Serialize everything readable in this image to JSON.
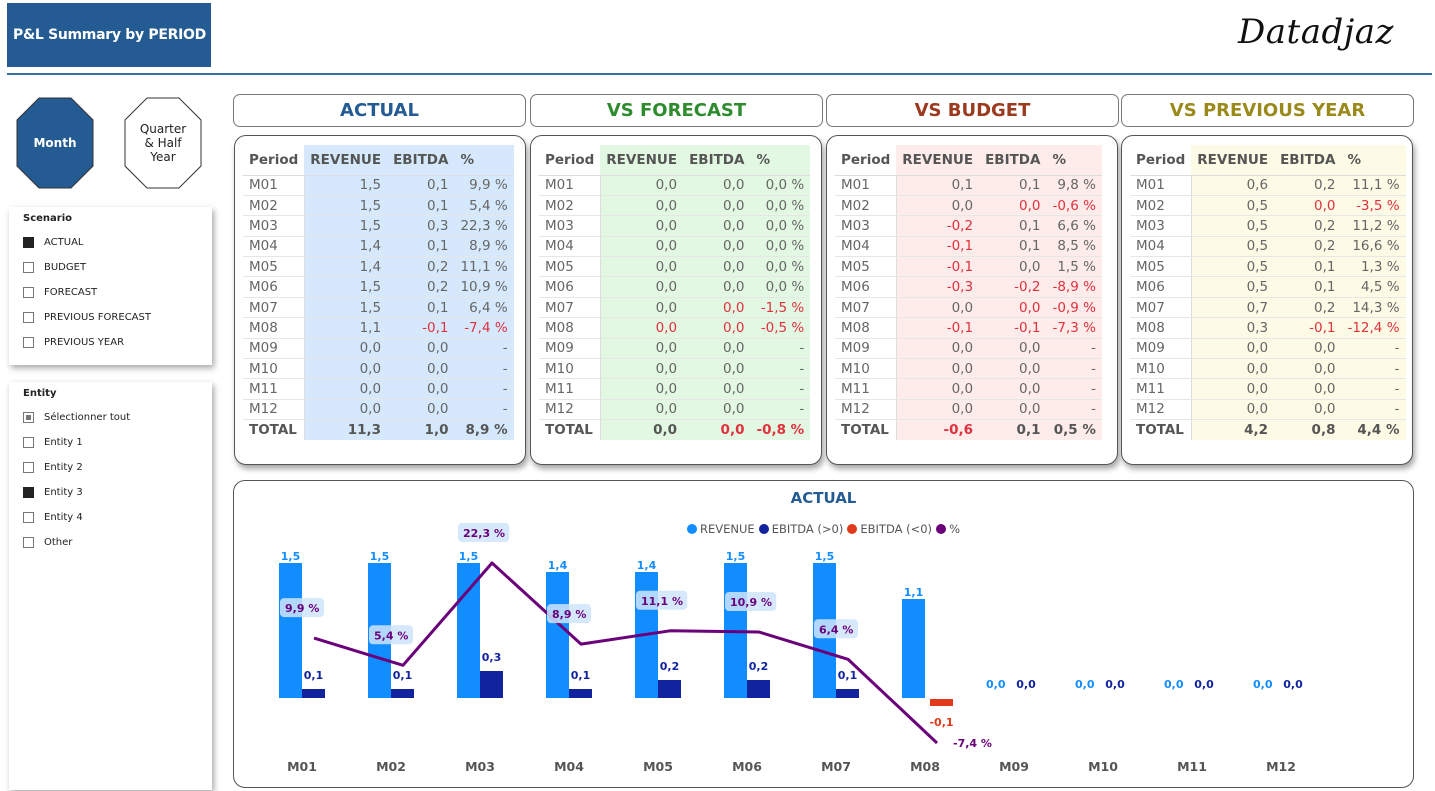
{
  "header": {
    "title": "P&L Summary by PERIOD",
    "logo": "Datadjaz"
  },
  "period_buttons": [
    {
      "label": "Month",
      "selected": true
    },
    {
      "label": "Quarter & Half Year",
      "lines": [
        "Quarter",
        "& Half",
        "Year"
      ],
      "selected": false
    }
  ],
  "scenario_slicer": {
    "title": "Scenario",
    "items": [
      {
        "label": "ACTUAL",
        "state": "on"
      },
      {
        "label": "BUDGET",
        "state": "off"
      },
      {
        "label": "FORECAST",
        "state": "off"
      },
      {
        "label": "PREVIOUS FORECAST",
        "state": "off"
      },
      {
        "label": "PREVIOUS YEAR",
        "state": "off"
      }
    ]
  },
  "entity_slicer": {
    "title": "Entity",
    "items": [
      {
        "label": "Sélectionner tout",
        "state": "partial"
      },
      {
        "label": "Entity 1",
        "state": "off"
      },
      {
        "label": "Entity 2",
        "state": "off"
      },
      {
        "label": "Entity 3",
        "state": "on"
      },
      {
        "label": "Entity 4",
        "state": "off"
      },
      {
        "label": "Other",
        "state": "off"
      }
    ]
  },
  "colors": {
    "actual_title": "#245b93",
    "forecast_title": "#2e8b2e",
    "budget_title": "#9b3a1f",
    "prevyear_title": "#9a8a1c",
    "actual_bg": "#d6e9fc",
    "forecast_bg": "#e3f8e3",
    "budget_bg": "#fdecea",
    "prevyear_bg": "#fdfae6",
    "revenue": "#118dff",
    "ebitda_pos": "#12239e",
    "ebitda_neg": "#e03a1a",
    "pct": "#6b007b",
    "negative_text": "#e0313f"
  },
  "tables": [
    {
      "id": "actual",
      "title": "ACTUAL",
      "columns": [
        "Period",
        "REVENUE",
        "EBITDA",
        "%"
      ],
      "rows": [
        [
          "M01",
          "1,5",
          "0,1",
          "9,9 %"
        ],
        [
          "M02",
          "1,5",
          "0,1",
          "5,4 %"
        ],
        [
          "M03",
          "1,5",
          "0,3",
          "22,3 %"
        ],
        [
          "M04",
          "1,4",
          "0,1",
          "8,9 %"
        ],
        [
          "M05",
          "1,4",
          "0,2",
          "11,1 %"
        ],
        [
          "M06",
          "1,5",
          "0,2",
          "10,9 %"
        ],
        [
          "M07",
          "1,5",
          "0,1",
          "6,4 %"
        ],
        [
          "M08",
          "1,1",
          "-0,1",
          "-7,4 %"
        ],
        [
          "M09",
          "0,0",
          "0,0",
          "-"
        ],
        [
          "M10",
          "0,0",
          "0,0",
          "-"
        ],
        [
          "M11",
          "0,0",
          "0,0",
          "-"
        ],
        [
          "M12",
          "0,0",
          "0,0",
          "-"
        ]
      ],
      "negative_cells": [
        [
          7,
          2
        ],
        [
          7,
          3
        ]
      ],
      "total": [
        "TOTAL",
        "11,3",
        "1,0",
        "8,9 %"
      ],
      "negative_total": []
    },
    {
      "id": "forecast",
      "title": "VS FORECAST",
      "columns": [
        "Period",
        "REVENUE",
        "EBITDA",
        "%"
      ],
      "rows": [
        [
          "M01",
          "0,0",
          "0,0",
          "0,0 %"
        ],
        [
          "M02",
          "0,0",
          "0,0",
          "0,0 %"
        ],
        [
          "M03",
          "0,0",
          "0,0",
          "0,0 %"
        ],
        [
          "M04",
          "0,0",
          "0,0",
          "0,0 %"
        ],
        [
          "M05",
          "0,0",
          "0,0",
          "0,0 %"
        ],
        [
          "M06",
          "0,0",
          "0,0",
          "0,0 %"
        ],
        [
          "M07",
          "0,0",
          "0,0",
          "-1,5 %"
        ],
        [
          "M08",
          "0,0",
          "0,0",
          "-0,5 %"
        ],
        [
          "M09",
          "0,0",
          "0,0",
          "-"
        ],
        [
          "M10",
          "0,0",
          "0,0",
          "-"
        ],
        [
          "M11",
          "0,0",
          "0,0",
          "-"
        ],
        [
          "M12",
          "0,0",
          "0,0",
          "-"
        ]
      ],
      "negative_cells": [
        [
          6,
          2
        ],
        [
          6,
          3
        ],
        [
          7,
          1
        ],
        [
          7,
          2
        ],
        [
          7,
          3
        ]
      ],
      "total": [
        "TOTAL",
        "0,0",
        "0,0",
        "-0,8 %"
      ],
      "negative_total": [
        2,
        3
      ]
    },
    {
      "id": "budget",
      "title": "VS BUDGET",
      "columns": [
        "Period",
        "REVENUE",
        "EBITDA",
        "%"
      ],
      "rows": [
        [
          "M01",
          "0,1",
          "0,1",
          "9,8 %"
        ],
        [
          "M02",
          "0,0",
          "0,0",
          "-0,6 %"
        ],
        [
          "M03",
          "-0,2",
          "0,1",
          "6,6 %"
        ],
        [
          "M04",
          "-0,1",
          "0,1",
          "8,5 %"
        ],
        [
          "M05",
          "-0,1",
          "0,0",
          "1,5 %"
        ],
        [
          "M06",
          "-0,3",
          "-0,2",
          "-8,9 %"
        ],
        [
          "M07",
          "0,0",
          "0,0",
          "-0,9 %"
        ],
        [
          "M08",
          "-0,1",
          "-0,1",
          "-7,3 %"
        ],
        [
          "M09",
          "0,0",
          "0,0",
          "-"
        ],
        [
          "M10",
          "0,0",
          "0,0",
          "-"
        ],
        [
          "M11",
          "0,0",
          "0,0",
          "-"
        ],
        [
          "M12",
          "0,0",
          "0,0",
          "-"
        ]
      ],
      "negative_cells": [
        [
          1,
          2
        ],
        [
          1,
          3
        ],
        [
          2,
          1
        ],
        [
          3,
          1
        ],
        [
          4,
          1
        ],
        [
          5,
          1
        ],
        [
          5,
          2
        ],
        [
          5,
          3
        ],
        [
          6,
          2
        ],
        [
          6,
          3
        ],
        [
          7,
          1
        ],
        [
          7,
          2
        ],
        [
          7,
          3
        ]
      ],
      "total": [
        "TOTAL",
        "-0,6",
        "0,1",
        "0,5 %"
      ],
      "negative_total": [
        1
      ]
    },
    {
      "id": "prevyear",
      "title": "VS PREVIOUS YEAR",
      "columns": [
        "Period",
        "REVENUE",
        "EBITDA",
        "%"
      ],
      "rows": [
        [
          "M01",
          "0,6",
          "0,2",
          "11,1 %"
        ],
        [
          "M02",
          "0,5",
          "0,0",
          "-3,5 %"
        ],
        [
          "M03",
          "0,5",
          "0,2",
          "11,2 %"
        ],
        [
          "M04",
          "0,5",
          "0,2",
          "16,6 %"
        ],
        [
          "M05",
          "0,5",
          "0,1",
          "1,3 %"
        ],
        [
          "M06",
          "0,5",
          "0,1",
          "4,5 %"
        ],
        [
          "M07",
          "0,7",
          "0,2",
          "14,3 %"
        ],
        [
          "M08",
          "0,3",
          "-0,1",
          "-12,4 %"
        ],
        [
          "M09",
          "0,0",
          "0,0",
          "-"
        ],
        [
          "M10",
          "0,0",
          "0,0",
          "-"
        ],
        [
          "M11",
          "0,0",
          "0,0",
          "-"
        ],
        [
          "M12",
          "0,0",
          "0,0",
          "-"
        ]
      ],
      "negative_cells": [
        [
          1,
          2
        ],
        [
          1,
          3
        ],
        [
          7,
          2
        ],
        [
          7,
          3
        ]
      ],
      "total": [
        "TOTAL",
        "4,2",
        "0,8",
        "4,4 %"
      ],
      "negative_total": []
    }
  ],
  "chart_data": {
    "type": "bar",
    "title": "ACTUAL",
    "legend": [
      "REVENUE",
      "EBITDA (>0)",
      "EBITDA (<0)",
      "%"
    ],
    "legend_position": "top-center",
    "categories": [
      "M01",
      "M02",
      "M03",
      "M04",
      "M05",
      "M06",
      "M07",
      "M08",
      "M09",
      "M10",
      "M11",
      "M12"
    ],
    "series": [
      {
        "name": "REVENUE",
        "type": "bar",
        "values": [
          1.5,
          1.5,
          1.5,
          1.4,
          1.4,
          1.5,
          1.5,
          1.1,
          0.0,
          0.0,
          0.0,
          0.0
        ],
        "labels": [
          "1,5",
          "1,5",
          "1,5",
          "1,4",
          "1,4",
          "1,5",
          "1,5",
          "1,1",
          "0,0",
          "0,0",
          "0,0",
          "0,0"
        ]
      },
      {
        "name": "EBITDA",
        "type": "bar",
        "values": [
          0.1,
          0.1,
          0.3,
          0.1,
          0.2,
          0.2,
          0.1,
          -0.1,
          0.0,
          0.0,
          0.0,
          0.0
        ],
        "labels": [
          "0,1",
          "0,1",
          "0,3",
          "0,1",
          "0,2",
          "0,2",
          "0,1",
          "-0,1",
          "0,0",
          "0,0",
          "0,0",
          "0,0"
        ]
      },
      {
        "name": "%",
        "type": "line",
        "values": [
          9.9,
          5.4,
          22.3,
          8.9,
          11.1,
          10.9,
          6.4,
          -7.4,
          null,
          null,
          null,
          null
        ],
        "labels": [
          "9,9 %",
          "5,4 %",
          "22,3 %",
          "8,9 %",
          "11,1 %",
          "10,9 %",
          "6,4 %",
          "-7,4 %",
          "",
          "",
          "",
          ""
        ]
      }
    ],
    "xlabel": "",
    "ylabel": "",
    "grid": false
  }
}
